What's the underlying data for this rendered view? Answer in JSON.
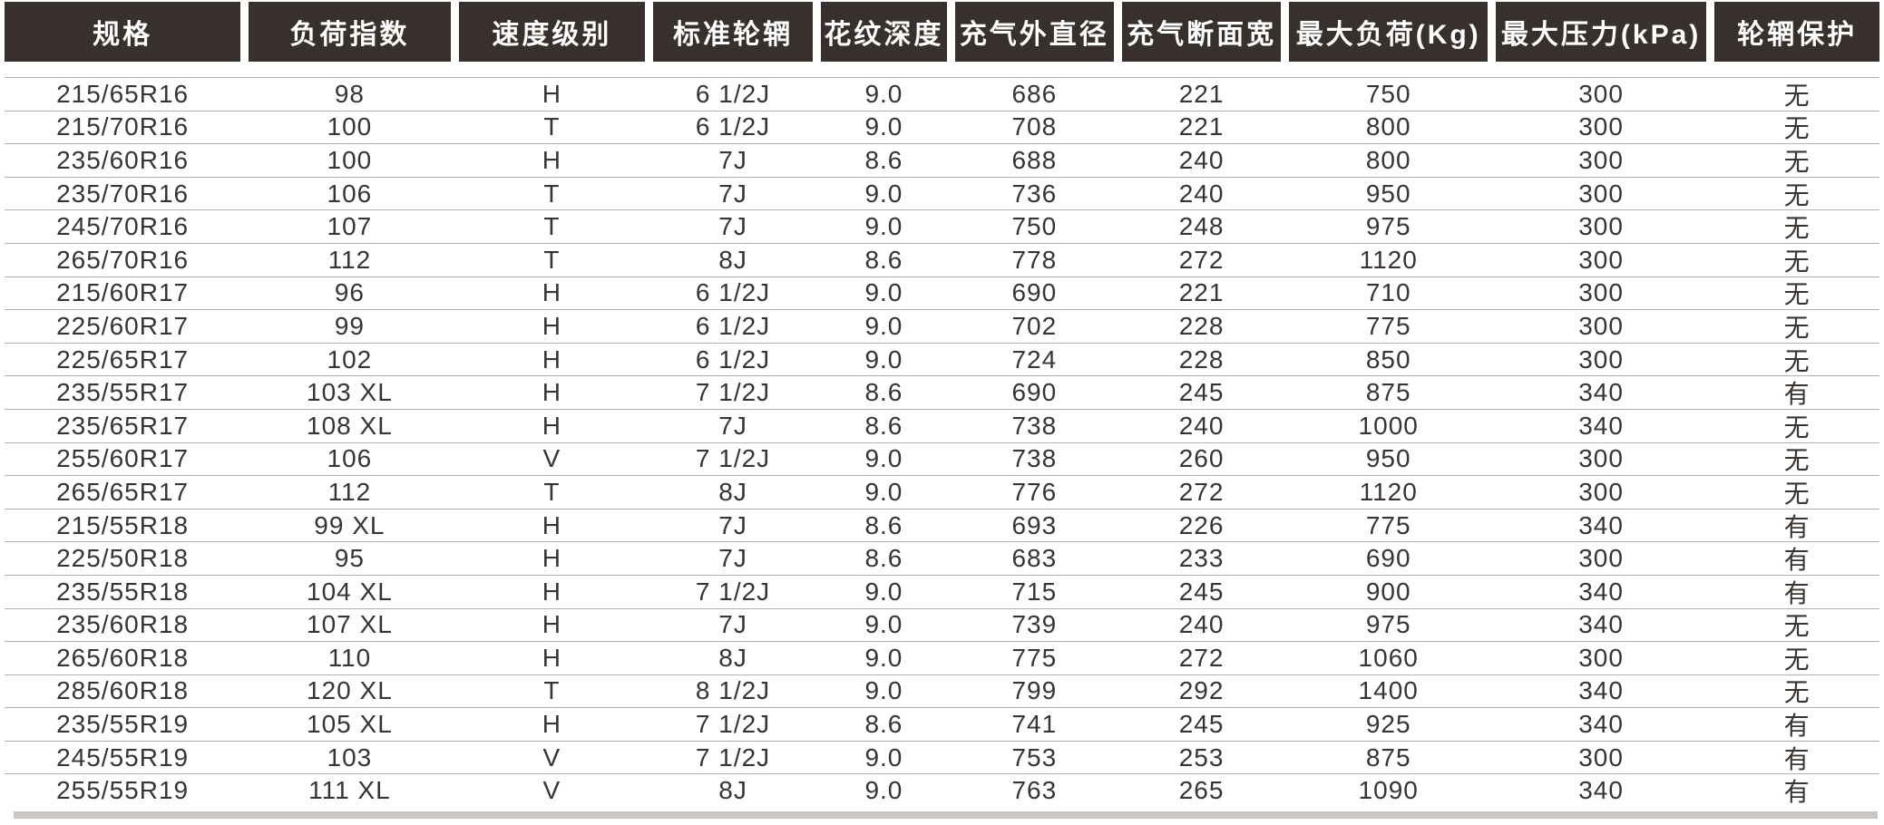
{
  "colors": {
    "header_bg": "#37302c",
    "header_text": "#ffffff",
    "data_text": "#3a3431",
    "row_line": "#b3b0ad",
    "bottom_bar": "#c9c6c4",
    "page_bg": "#ffffff"
  },
  "table": {
    "columns": [
      {
        "id": "spec",
        "label": "规格",
        "weight": 13.1
      },
      {
        "id": "load_index",
        "label": "负荷指数",
        "weight": 11.2
      },
      {
        "id": "speed_rating",
        "label": "速度级别",
        "weight": 10.35
      },
      {
        "id": "standard_rim",
        "label": "标准轮辋",
        "weight": 8.85
      },
      {
        "id": "tread_depth",
        "label": "花纹深度",
        "weight": 7.0
      },
      {
        "id": "inflated_outer_diameter",
        "label": "充气外直径",
        "weight": 8.8
      },
      {
        "id": "inflated_section_width",
        "label": "充气断面宽",
        "weight": 8.85
      },
      {
        "id": "max_load_kg",
        "label": "最大负荷(Kg)",
        "weight": 11.0
      },
      {
        "id": "max_pressure_kpa",
        "label": "最大压力(kPa)",
        "weight": 11.7
      },
      {
        "id": "rim_protection",
        "label": "轮辋保护",
        "weight": 9.15
      }
    ],
    "rows": [
      [
        "215/65R16",
        "98",
        "H",
        "6 1/2J",
        "9.0",
        "686",
        "221",
        "750",
        "300",
        "无"
      ],
      [
        "215/70R16",
        "100",
        "T",
        "6 1/2J",
        "9.0",
        "708",
        "221",
        "800",
        "300",
        "无"
      ],
      [
        "235/60R16",
        "100",
        "H",
        "7J",
        "8.6",
        "688",
        "240",
        "800",
        "300",
        "无"
      ],
      [
        "235/70R16",
        "106",
        "T",
        "7J",
        "9.0",
        "736",
        "240",
        "950",
        "300",
        "无"
      ],
      [
        "245/70R16",
        "107",
        "T",
        "7J",
        "9.0",
        "750",
        "248",
        "975",
        "300",
        "无"
      ],
      [
        "265/70R16",
        "112",
        "T",
        "8J",
        "8.6",
        "778",
        "272",
        "1120",
        "300",
        "无"
      ],
      [
        "215/60R17",
        "96",
        "H",
        "6 1/2J",
        "9.0",
        "690",
        "221",
        "710",
        "300",
        "无"
      ],
      [
        "225/60R17",
        "99",
        "H",
        "6 1/2J",
        "9.0",
        "702",
        "228",
        "775",
        "300",
        "无"
      ],
      [
        "225/65R17",
        "102",
        "H",
        "6 1/2J",
        "9.0",
        "724",
        "228",
        "850",
        "300",
        "无"
      ],
      [
        "235/55R17",
        "103 XL",
        "H",
        "7 1/2J",
        "8.6",
        "690",
        "245",
        "875",
        "340",
        "有"
      ],
      [
        "235/65R17",
        "108 XL",
        "H",
        "7J",
        "8.6",
        "738",
        "240",
        "1000",
        "340",
        "无"
      ],
      [
        "255/60R17",
        "106",
        "V",
        "7 1/2J",
        "9.0",
        "738",
        "260",
        "950",
        "300",
        "无"
      ],
      [
        "265/65R17",
        "112",
        "T",
        "8J",
        "9.0",
        "776",
        "272",
        "1120",
        "300",
        "无"
      ],
      [
        "215/55R18",
        "99 XL",
        "H",
        "7J",
        "8.6",
        "693",
        "226",
        "775",
        "340",
        "有"
      ],
      [
        "225/50R18",
        "95",
        "H",
        "7J",
        "8.6",
        "683",
        "233",
        "690",
        "300",
        "有"
      ],
      [
        "235/55R18",
        "104 XL",
        "H",
        "7 1/2J",
        "9.0",
        "715",
        "245",
        "900",
        "340",
        "有"
      ],
      [
        "235/60R18",
        "107 XL",
        "H",
        "7J",
        "9.0",
        "739",
        "240",
        "975",
        "340",
        "无"
      ],
      [
        "265/60R18",
        "110",
        "H",
        "8J",
        "9.0",
        "775",
        "272",
        "1060",
        "300",
        "无"
      ],
      [
        "285/60R18",
        "120 XL",
        "T",
        "8 1/2J",
        "9.0",
        "799",
        "292",
        "1400",
        "340",
        "无"
      ],
      [
        "235/55R19",
        "105 XL",
        "H",
        "7 1/2J",
        "8.6",
        "741",
        "245",
        "925",
        "340",
        "有"
      ],
      [
        "245/55R19",
        "103",
        "V",
        "7 1/2J",
        "9.0",
        "753",
        "253",
        "875",
        "300",
        "有"
      ],
      [
        "255/55R19",
        "111 XL",
        "V",
        "8J",
        "9.0",
        "763",
        "265",
        "1090",
        "340",
        "有"
      ]
    ]
  }
}
